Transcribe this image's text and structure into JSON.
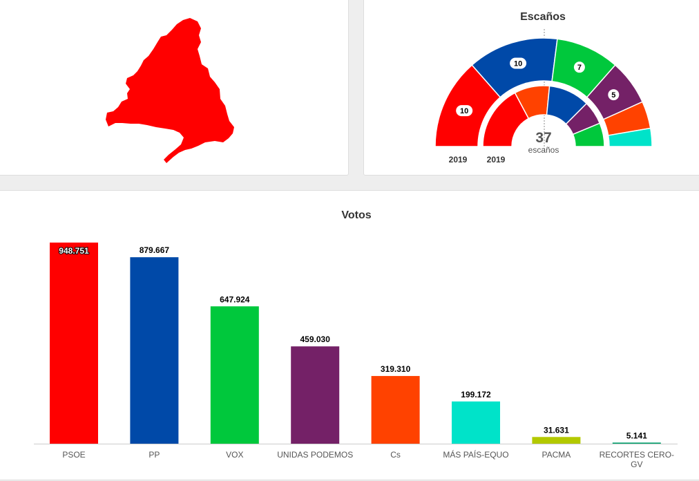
{
  "seats_chart": {
    "title": "Escaños",
    "outer_year": "2019",
    "inner_year": "2019",
    "total_value": "37",
    "total_label": "escaños"
  },
  "votes_chart": {
    "title": "Votos"
  },
  "colors": {
    "PSOE": "#ff0000",
    "PP": "#0049a8",
    "VOX": "#00c83c",
    "UNIDAS PODEMOS": "#742167",
    "Cs": "#ff4200",
    "MÁS PAÍS-EQUO": "#00e3c9",
    "PACMA": "#b3c900",
    "RECORTES CERO-GV": "#009f6b"
  },
  "chart_data": [
    {
      "type": "pie",
      "title": "Escaños",
      "subtype": "semicircle-donut",
      "ring": "outer",
      "year": "2019",
      "categories": [
        "PSOE",
        "PP",
        "VOX",
        "UNIDAS PODEMOS",
        "Cs",
        "MÁS PAÍS-EQUO"
      ],
      "values": [
        10,
        10,
        7,
        5,
        3,
        2
      ],
      "data_labels": [
        "10",
        "10",
        "7",
        "5",
        "",
        ""
      ]
    },
    {
      "type": "pie",
      "subtype": "semicircle-donut",
      "ring": "inner",
      "year": "2019",
      "categories": [
        "PSOE",
        "Cs",
        "PP",
        "UNIDAS PODEMOS",
        "VOX"
      ],
      "values": [
        11,
        6,
        7,
        4,
        4
      ]
    },
    {
      "type": "bar",
      "title": "Votos",
      "categories": [
        "PSOE",
        "PP",
        "VOX",
        "UNIDAS PODEMOS",
        "Cs",
        "MÁS PAÍS-EQUO",
        "PACMA",
        "RECORTES CERO-GV"
      ],
      "category_labels": [
        [
          "PSOE"
        ],
        [
          "PP"
        ],
        [
          "VOX"
        ],
        [
          "UNIDAS PODEMOS"
        ],
        [
          "Cs"
        ],
        [
          "MÁS PAÍS-EQUO"
        ],
        [
          "PACMA"
        ],
        [
          "RECORTES CERO-",
          "GV"
        ]
      ],
      "values": [
        948751,
        879667,
        647924,
        459030,
        319310,
        199172,
        31631,
        5141
      ],
      "data_labels": [
        "948.751",
        "879.667",
        "647.924",
        "459.030",
        "319.310",
        "199.172",
        "31.631",
        "5.141"
      ],
      "ylim": [
        0,
        948751
      ],
      "grid": false,
      "legend": "none"
    }
  ]
}
